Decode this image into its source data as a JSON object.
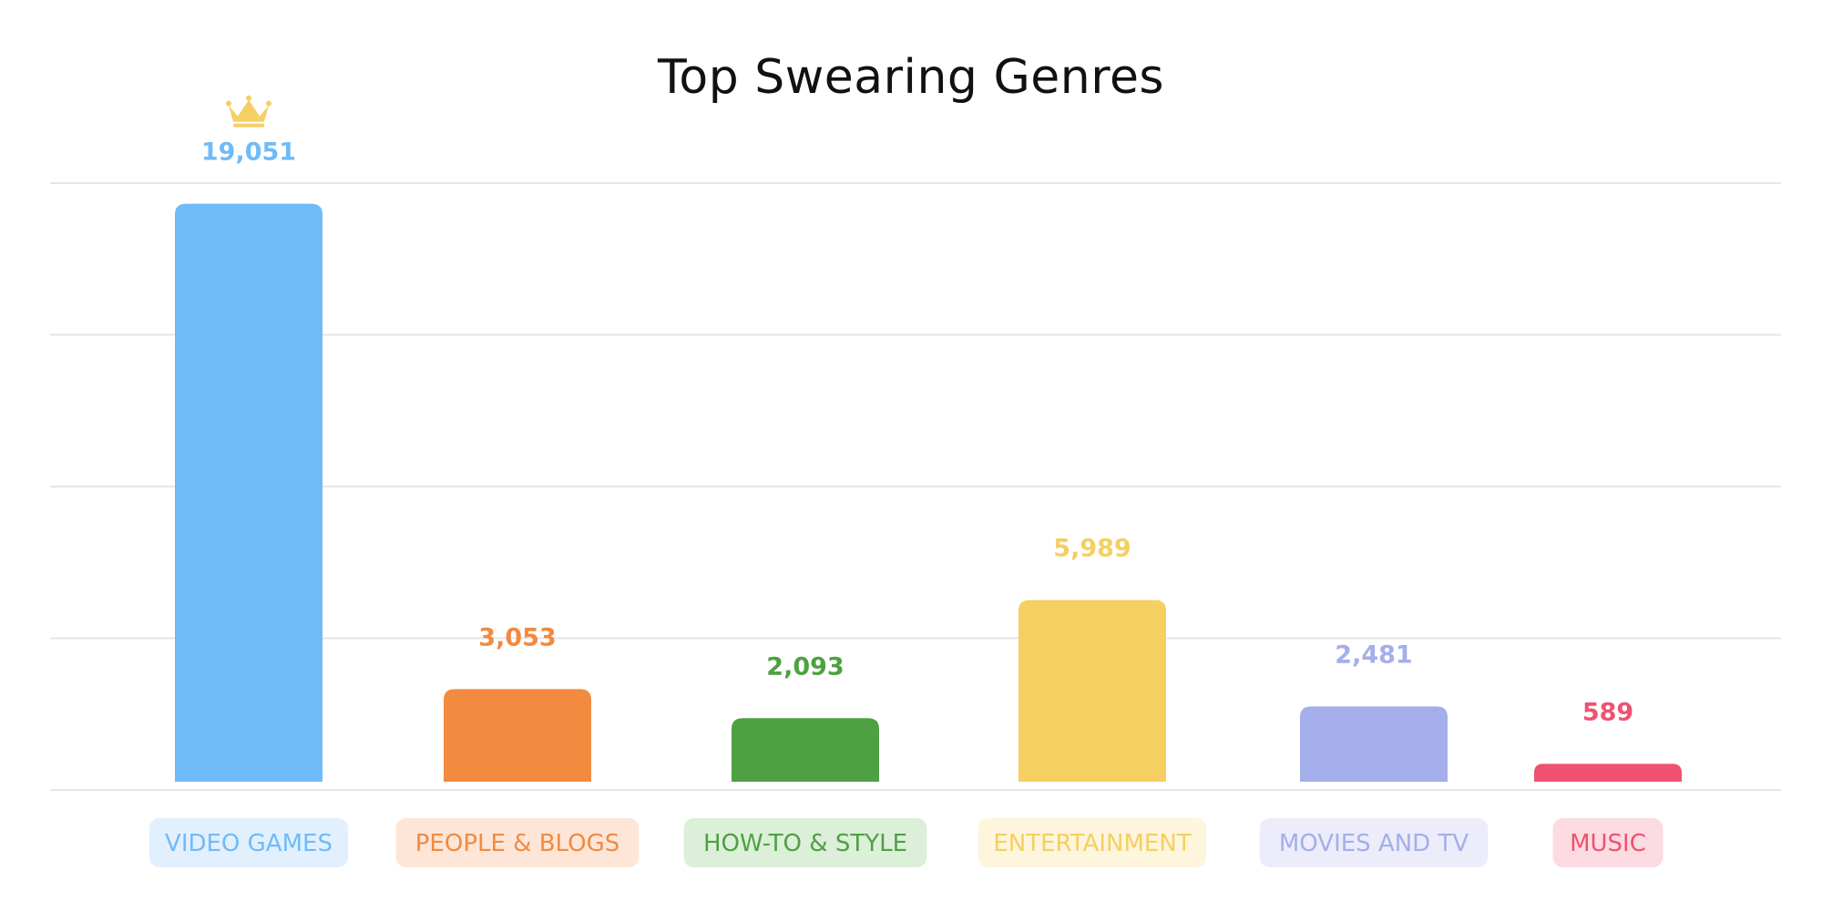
{
  "chart_data": {
    "type": "bar",
    "title": "Top Swearing Genres",
    "xlabel": "",
    "ylabel": "",
    "ylim": [
      0,
      20000
    ],
    "grid": true,
    "categories": [
      "VIDEO GAMES",
      "PEOPLE & BLOGS",
      "HOW-TO & STYLE",
      "ENTERTAINMENT",
      "MOVIES AND TV",
      "MUSIC"
    ],
    "values": [
      19051,
      3053,
      2093,
      5989,
      2481,
      589
    ],
    "value_labels": [
      "19,051",
      "3,053",
      "2,093",
      "5,989",
      "2,481",
      "589"
    ],
    "colors": [
      "#6fbbf9",
      "#f28a40",
      "#4fa043",
      "#f5cf62",
      "#a4aeea",
      "#ee5270"
    ],
    "pill_backgrounds": [
      "#e2f0fd",
      "#fde6d8",
      "#dcefd9",
      "#fdf5dc",
      "#ececfb",
      "#fcdbe2"
    ],
    "annotations": [
      {
        "category": "VIDEO GAMES",
        "icon": "crown-icon",
        "color": "#f5cf62"
      }
    ]
  }
}
